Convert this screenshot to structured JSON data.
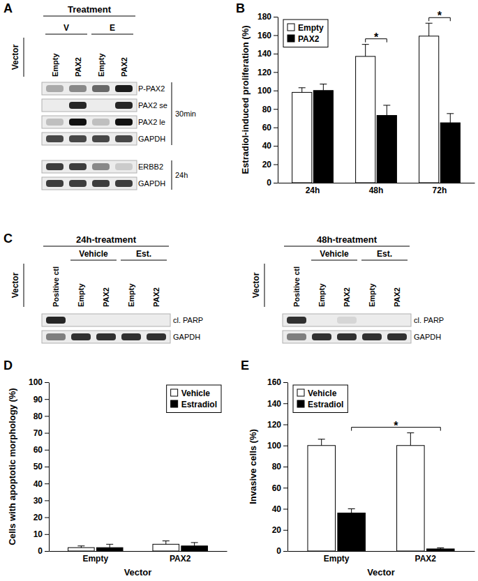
{
  "chart_data": [
    {
      "type": "blot",
      "title": "A",
      "subtitle": "Treatment",
      "lane_title": "Vector",
      "lane_groups": [
        "V",
        "V",
        "E",
        "E"
      ],
      "lanes": [
        "Empty",
        "PAX2",
        "Empty",
        "PAX2"
      ],
      "rows": [
        {
          "name": "P-PAX2",
          "group": "30min",
          "values": [
            0.3,
            0.45,
            0.6,
            0.95
          ]
        },
        {
          "name": "PAX2 se",
          "group": "30min",
          "values": [
            0,
            0.9,
            0,
            0.9
          ]
        },
        {
          "name": "PAX2 le",
          "group": "30min",
          "values": [
            0.2,
            1,
            0.2,
            1
          ]
        },
        {
          "name": "GAPDH",
          "group": "30min",
          "values": [
            0.75,
            0.75,
            0.75,
            0.75
          ]
        },
        {
          "name": "ERBB2",
          "group": "24h",
          "values": [
            0.8,
            0.8,
            0.45,
            0.15
          ]
        },
        {
          "name": "GAPDH",
          "group": "24h",
          "values": [
            0.8,
            0.8,
            0.8,
            0.8
          ]
        }
      ]
    },
    {
      "type": "bar",
      "title": "B",
      "ylabel": "Estradiol-induced proliferation (%)",
      "categories": [
        "24h",
        "48h",
        "72h"
      ],
      "series": [
        {
          "name": "Empty",
          "color": "#ffffff",
          "values": [
            98,
            137,
            159
          ],
          "errors": [
            5,
            13,
            14
          ]
        },
        {
          "name": "PAX2",
          "color": "#000000",
          "values": [
            100,
            73,
            65
          ],
          "errors": [
            7,
            11,
            10
          ]
        }
      ],
      "ylim": [
        0,
        180
      ],
      "yticks": [
        0,
        20,
        40,
        60,
        80,
        100,
        120,
        140,
        160,
        180
      ],
      "legend": "top-left",
      "annotations": [
        {
          "text": "*",
          "from": {
            "category": "48h",
            "series": "Empty"
          },
          "to": {
            "category": "48h",
            "series": "PAX2"
          }
        },
        {
          "text": "*",
          "from": {
            "category": "72h",
            "series": "Empty"
          },
          "to": {
            "category": "72h",
            "series": "PAX2"
          }
        }
      ]
    },
    {
      "type": "blot",
      "title": "C",
      "subtitle": "24h-treatment",
      "lane_title": "Vector",
      "lane_groups": [
        null,
        "Vehicle",
        "Vehicle",
        "Est.",
        "Est."
      ],
      "lanes": [
        "Positive ctl",
        "Empty",
        "PAX2",
        "Empty",
        "PAX2"
      ],
      "rows": [
        {
          "name": "cl. PARP",
          "values": [
            0.9,
            0,
            0,
            0,
            0
          ]
        },
        {
          "name": "GAPDH",
          "values": [
            0.5,
            0.85,
            0.85,
            0.85,
            0.85
          ]
        }
      ]
    },
    {
      "type": "blot",
      "subtitle": "48h-treatment",
      "lane_title": "Vector",
      "lane_groups": [
        null,
        "Vehicle",
        "Vehicle",
        "Est.",
        "Est."
      ],
      "lanes": [
        "Positive ctl",
        "Empty",
        "PAX2",
        "Empty",
        "PAX2"
      ],
      "rows": [
        {
          "name": "cl. PARP",
          "values": [
            0.85,
            0,
            0.1,
            0,
            0
          ]
        },
        {
          "name": "GAPDH",
          "values": [
            0.5,
            0.85,
            0.85,
            0.85,
            0.85
          ]
        }
      ]
    },
    {
      "type": "bar",
      "title": "D",
      "ylabel": "Cells with apoptotic morphology (%)",
      "xlabel": "Vector",
      "categories": [
        "Empty",
        "PAX2"
      ],
      "series": [
        {
          "name": "Vehicle",
          "color": "#ffffff",
          "values": [
            2,
            4
          ],
          "errors": [
            1,
            2
          ]
        },
        {
          "name": "Estradiol",
          "color": "#000000",
          "values": [
            2,
            3
          ],
          "errors": [
            2,
            2
          ]
        }
      ],
      "ylim": [
        0,
        100
      ],
      "yticks": [
        0,
        10,
        20,
        30,
        40,
        50,
        60,
        70,
        80,
        90,
        100
      ],
      "legend": "top-right"
    },
    {
      "type": "bar",
      "title": "E",
      "ylabel": "Invasive cells (%)",
      "xlabel": "Vector",
      "categories": [
        "Empty",
        "PAX2"
      ],
      "series": [
        {
          "name": "Vehicle",
          "color": "#ffffff",
          "values": [
            100,
            100
          ],
          "errors": [
            6,
            12
          ]
        },
        {
          "name": "Estradiol",
          "color": "#000000",
          "values": [
            36,
            2
          ],
          "errors": [
            4,
            1
          ]
        }
      ],
      "ylim": [
        0,
        160
      ],
      "yticks": [
        0,
        20,
        40,
        60,
        80,
        100,
        120,
        140,
        160
      ],
      "legend": "top-left",
      "annotations": [
        {
          "text": "*",
          "from": {
            "category": "Empty",
            "series": "Estradiol"
          },
          "to": {
            "category": "PAX2",
            "series": "Estradiol"
          }
        }
      ]
    }
  ]
}
